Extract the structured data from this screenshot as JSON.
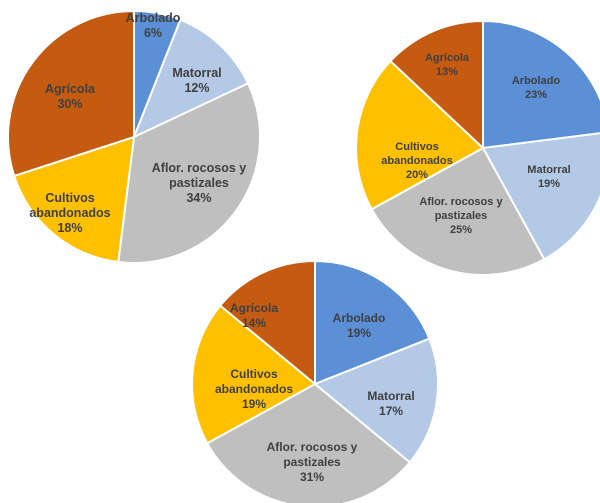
{
  "colors": {
    "Arbolado": "#5b8fd6",
    "Matorral": "#b4c9e6",
    "Aflor. rocosos y pastizales": "#bfbfbf",
    "Cultivos abandonados": "#ffc000",
    "Agrícola": "#c55a11",
    "label": "#404040",
    "slice_border": "#ffffff"
  },
  "chart_data": [
    {
      "type": "pie",
      "categories": [
        "Arbolado",
        "Matorral",
        "Aflor. rocosos y pastizales",
        "Cultivos abandonados",
        "Agrícola"
      ],
      "values": [
        6,
        12,
        34,
        18,
        30
      ],
      "labels": [
        "6%",
        "12%",
        "34%",
        "18%",
        "30%"
      ]
    },
    {
      "type": "pie",
      "categories": [
        "Arbolado",
        "Matorral",
        "Aflor. rocosos y pastizales",
        "Cultivos abandonados",
        "Agrícola"
      ],
      "values": [
        23,
        19,
        25,
        20,
        13
      ],
      "labels": [
        "23%",
        "19%",
        "25%",
        "20%",
        "13%"
      ]
    },
    {
      "type": "pie",
      "categories": [
        "Arbolado",
        "Matorral",
        "Aflor. rocosos y pastizales",
        "Cultivos abandonados",
        "Agrícola"
      ],
      "values": [
        19,
        17,
        31,
        19,
        14
      ],
      "labels": [
        "19%",
        "17%",
        "31%",
        "19%",
        "14%"
      ]
    }
  ]
}
